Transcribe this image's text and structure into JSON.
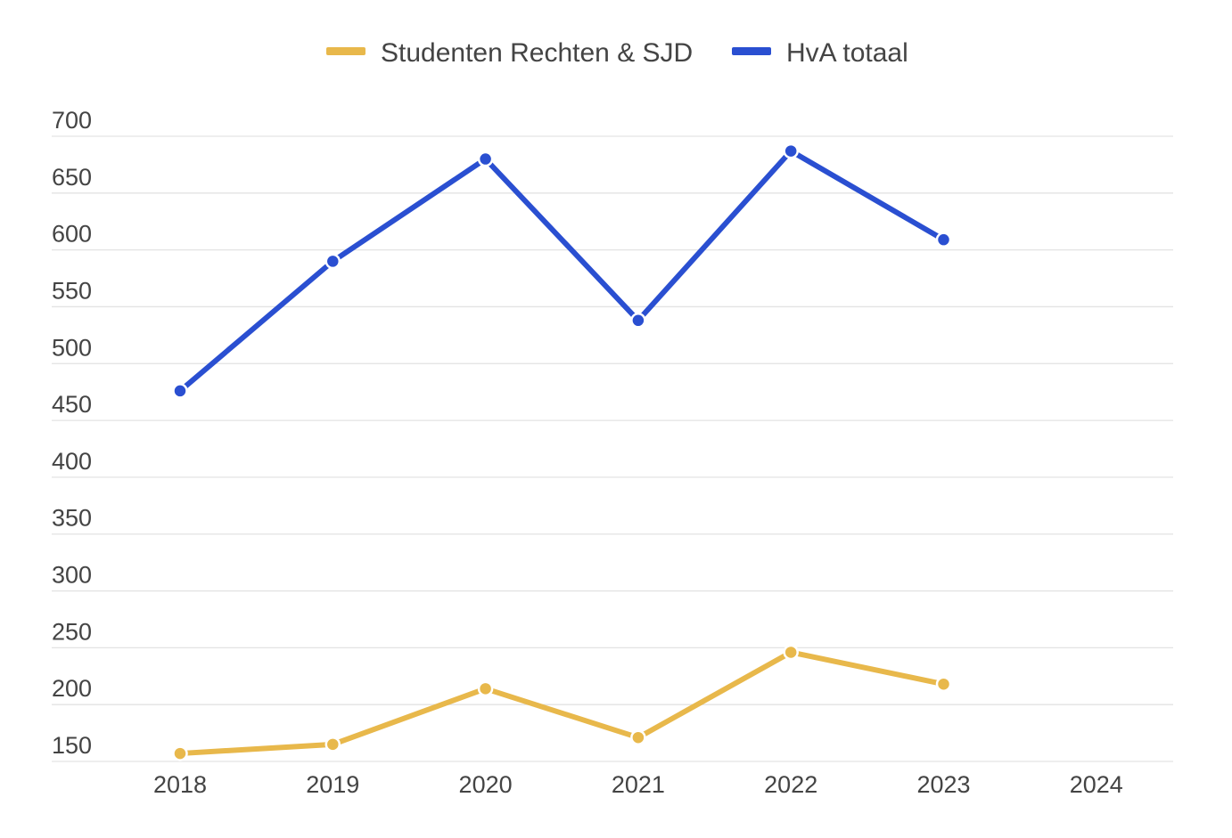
{
  "chart_data": {
    "type": "line",
    "title": "",
    "xlabel": "",
    "ylabel": "",
    "categories": [
      "2018",
      "2019",
      "2020",
      "2021",
      "2022",
      "2023",
      "2024"
    ],
    "ylim": [
      150,
      700
    ],
    "yticks": [
      150,
      200,
      250,
      300,
      350,
      400,
      450,
      500,
      550,
      600,
      650,
      700
    ],
    "grid": true,
    "legend_position": "top-center",
    "series": [
      {
        "name": "Studenten Rechten & SJD",
        "color": "#e8b84b",
        "values": [
          157,
          165,
          214,
          171,
          246,
          218,
          null
        ]
      },
      {
        "name": "HvA totaal",
        "color": "#2a4fd1",
        "values": [
          476,
          590,
          680,
          538,
          687,
          609,
          null
        ]
      }
    ]
  }
}
